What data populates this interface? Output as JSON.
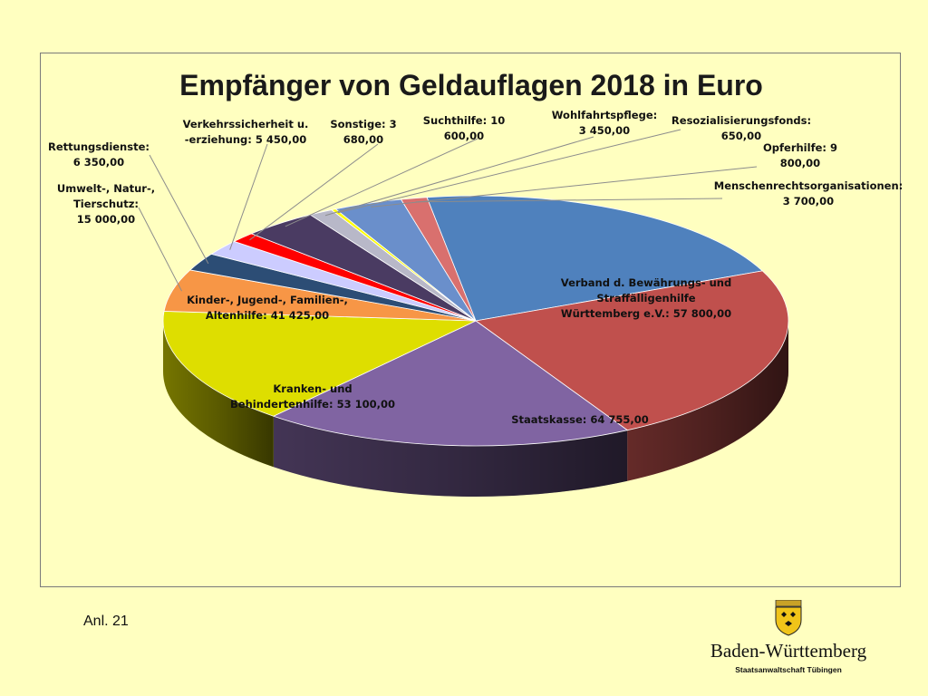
{
  "chart_data": {
    "type": "pie",
    "title": "Empfänger von Geldauflagen 2018 in Euro",
    "slices": [
      {
        "name": "Verband d. Bewährungs- und Straffälligenhilfe Württemberg e.V.",
        "label_lines": [
          "Verband d. Bewährungs- und",
          "Straffälligenhilfe",
          "Württemberg e.V.:  57 800,00"
        ],
        "value": 57800.0,
        "color": "#4f81bd"
      },
      {
        "name": "Staatskasse",
        "label_lines": [
          "Staatskasse:  64 755,00"
        ],
        "value": 64755.0,
        "color": "#c0504d"
      },
      {
        "name": "Kranken- und Behindertenhilfe",
        "label_lines": [
          "Kranken- und",
          "Behindertenhilfe:  53 100,00"
        ],
        "value": 53100.0,
        "color": "#8064a2"
      },
      {
        "name": "Kinder-, Jugend-, Familien-, Altenhilfe",
        "label_lines": [
          "Kinder-, Jugend-, Familien-,",
          "Altenhilfe:  41 425,00"
        ],
        "value": 41425.0,
        "color": "#dede00"
      },
      {
        "name": "Umwelt-, Natur-, Tierschutz",
        "label_lines": [
          "Umwelt-, Natur-,",
          "Tierschutz:",
          "15 000,00"
        ],
        "value": 15000.0,
        "color": "#f79646"
      },
      {
        "name": "Rettungsdienste",
        "label_lines": [
          "Rettungsdienste:",
          "6 350,00"
        ],
        "value": 6350.0,
        "color": "#2c4d75"
      },
      {
        "name": "Verkehrssicherheit u. -erziehung",
        "label_lines": [
          "Verkehrssicherheit u.",
          "-erziehung:  5 450,00"
        ],
        "value": 5450.0,
        "color": "#ccccff"
      },
      {
        "name": "Sonstige",
        "label_lines": [
          "Sonstige:  3",
          "680,00"
        ],
        "value": 3680.0,
        "color": "#ff0000"
      },
      {
        "name": "Suchthilfe",
        "label_lines": [
          "Suchthilfe:  10",
          "600,00"
        ],
        "value": 10600.0,
        "color": "#4a3b62"
      },
      {
        "name": "Wohlfahrtspflege",
        "label_lines": [
          "Wohlfahrtspflege:",
          "3 450,00"
        ],
        "value": 3450.0,
        "color": "#b8b8c8"
      },
      {
        "name": "Resozialisierungsfonds",
        "label_lines": [
          "Resozialisierungsfonds:",
          "650,00"
        ],
        "value": 650.0,
        "color": "#ffff00"
      },
      {
        "name": "Opferhilfe",
        "label_lines": [
          "Opferhilfe:  9",
          "800,00"
        ],
        "value": 9800.0,
        "color": "#6a8fcb"
      },
      {
        "name": "Menschenrechtsorganisationen",
        "label_lines": [
          "Menschenrechtsorganisationen:",
          "3 700,00"
        ],
        "value": 3700.0,
        "color": "#d9706e"
      }
    ]
  },
  "footer": {
    "annex": "Anl. 21",
    "logo_name": "Baden-Württemberg",
    "logo_sub": "Staatsanwaltschaft Tübingen"
  }
}
